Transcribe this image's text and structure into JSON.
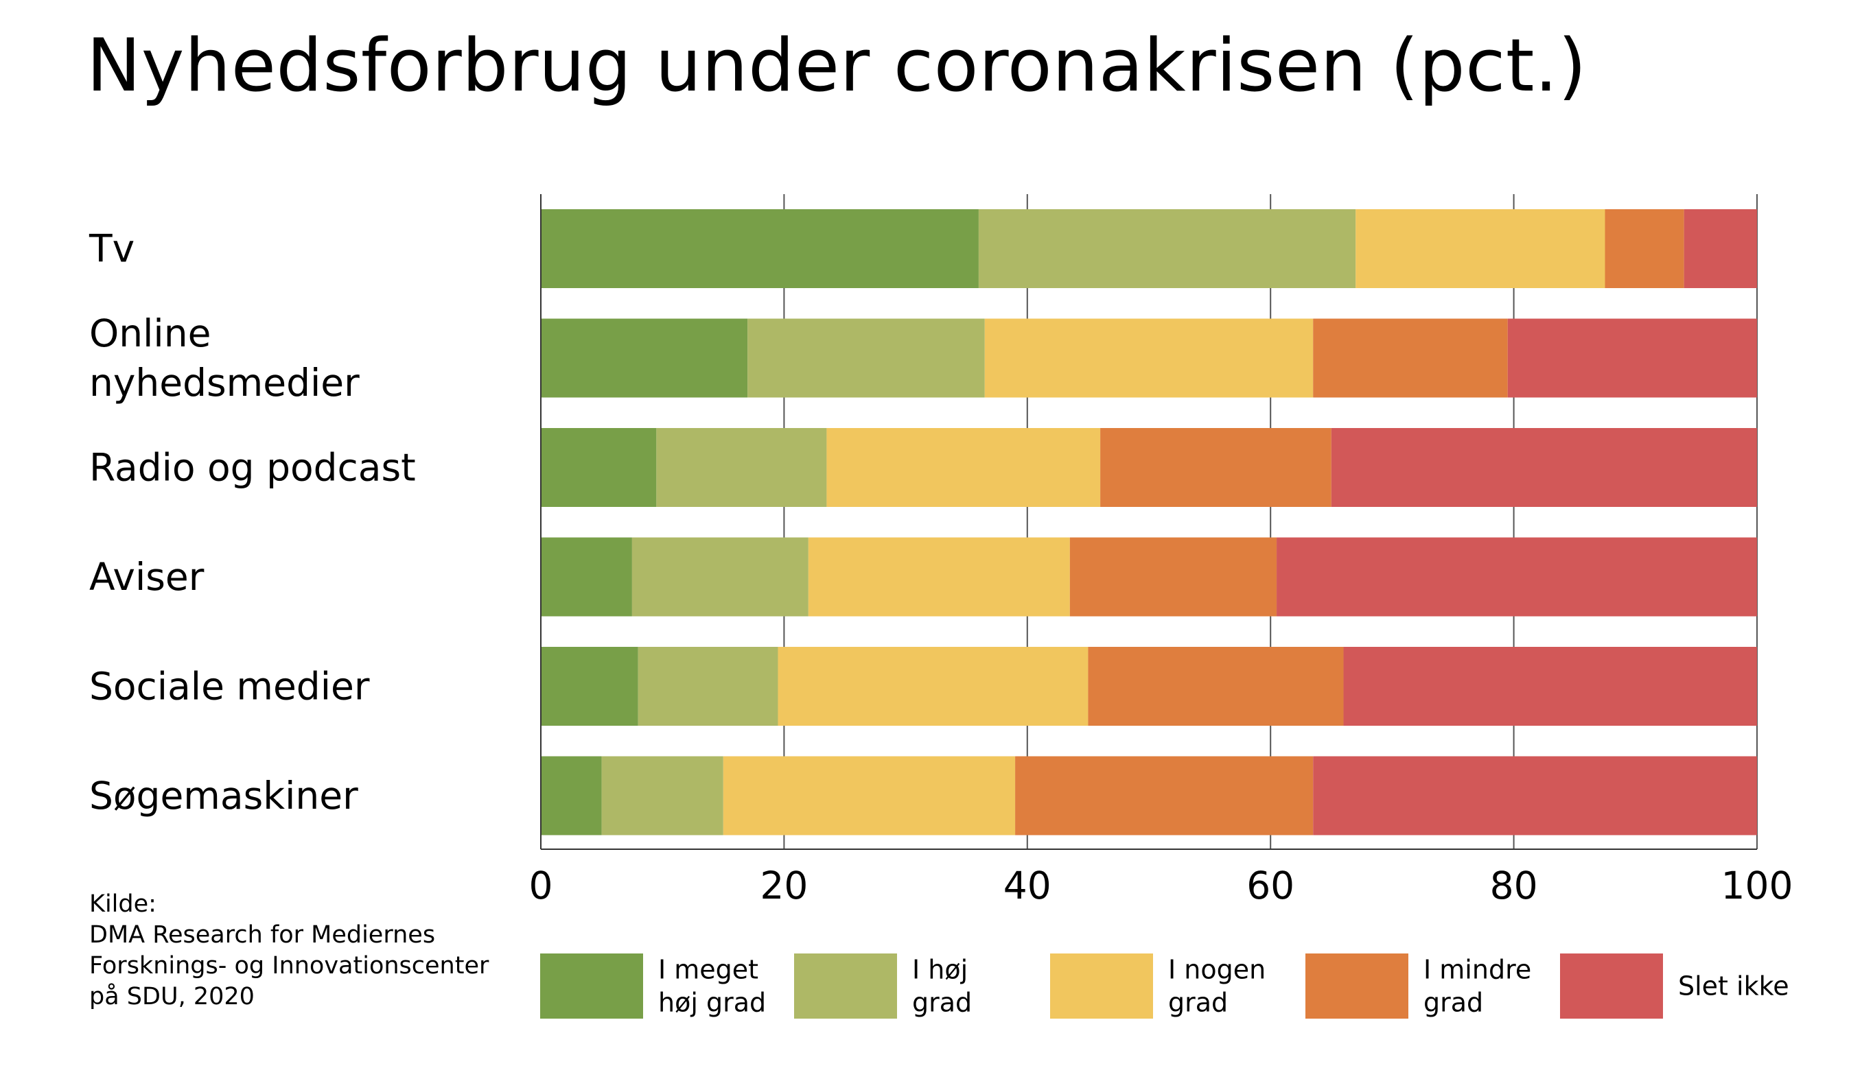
{
  "chart_data": {
    "type": "bar",
    "orientation": "horizontal",
    "stacked": true,
    "title": "Nyhedsforbrug under coronakrisen (pct.)",
    "categories": [
      [
        "Tv"
      ],
      [
        "Online",
        "nyhedsmedier"
      ],
      [
        "Radio og podcast"
      ],
      [
        "Aviser"
      ],
      [
        "Sociale medier"
      ],
      [
        "Søgemaskiner"
      ]
    ],
    "series": [
      {
        "name": [
          "I meget",
          "høj grad"
        ],
        "color": "#789f48",
        "values": [
          36,
          17,
          9.5,
          7.5,
          8,
          5
        ]
      },
      {
        "name": [
          "I høj",
          "grad"
        ],
        "color": "#aeb866",
        "values": [
          31,
          19.5,
          14,
          14.5,
          11.5,
          10
        ]
      },
      {
        "name": [
          "I nogen",
          "grad"
        ],
        "color": "#f1c65e",
        "values": [
          20.5,
          27,
          22.5,
          21.5,
          25.5,
          24
        ]
      },
      {
        "name": [
          "I mindre",
          "grad"
        ],
        "color": "#df7e3e",
        "values": [
          6.5,
          16,
          19,
          17,
          21,
          24.5
        ]
      },
      {
        "name": [
          "Slet ikke"
        ],
        "color": "#d25858",
        "values": [
          6,
          20.5,
          35,
          39.5,
          34,
          36.5
        ]
      }
    ],
    "xlim": [
      0,
      100
    ],
    "xticks": [
      "0",
      "20",
      "40",
      "60",
      "80",
      "100"
    ],
    "grid": true,
    "legend": "bottom"
  },
  "source": {
    "lines": [
      "Kilde:",
      "DMA Research for Mediernes",
      "Forsknings- og Innovationscenter",
      "på SDU, 2020"
    ]
  }
}
